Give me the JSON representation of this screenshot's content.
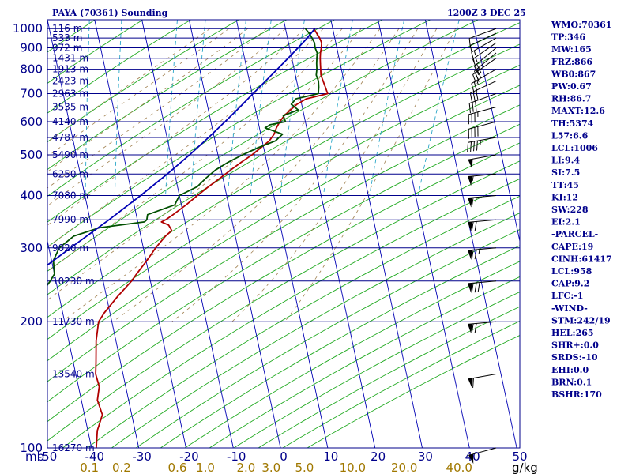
{
  "header": {
    "station_title": "PAYA (70361) Sounding",
    "valid_time": "1200Z  3 DEC 25"
  },
  "units": {
    "pressure": "mb",
    "mixing_ratio": "g/kg"
  },
  "indices": [
    "WMO:70361",
    "TP:346",
    "MW:165",
    "FRZ:866",
    "WB0:867",
    "PW:0.67",
    "RH:86.7",
    "MAXT:12.6",
    "TH:5374",
    "L57:6.6",
    "LCL:1006",
    "LI:9.4",
    "SI:7.5",
    "TT:45",
    "KI:12",
    "SW:228",
    "EI:2.1",
    "-PARCEL-",
    "CAPE:19",
    "CINH:61417",
    "LCL:958",
    "CAP:9.2",
    "LFC:-1",
    "-WIND-",
    "STM:242/19",
    "HEL:265",
    "SHR+:0.0",
    "SRDS:-10",
    "EHI:0.0",
    "BRN:0.1",
    "BSHR:170"
  ],
  "chart_data": {
    "type": "line",
    "title": "PAYA (70361) Sounding",
    "subtitle": "1200Z  3 DEC 25",
    "xlabel": "",
    "ylabel": "",
    "ylog": true,
    "ylim": [
      1050,
      100
    ],
    "xlim": [
      -50,
      50
    ],
    "skew": true,
    "pressure_levels": [
      100,
      200,
      300,
      400,
      500,
      600,
      700,
      800,
      900,
      1000
    ],
    "pressure_tick_labels": [
      "100",
      "200",
      "300",
      "400",
      "500",
      "600",
      "700",
      "800",
      "900",
      "1000"
    ],
    "temperature_ticks": [
      -50,
      -40,
      -30,
      -20,
      -10,
      0,
      10,
      20,
      30,
      40,
      50
    ],
    "temperature_tick_labels": [
      "-50",
      "-40",
      "-30",
      "-20",
      "-10",
      "0",
      "10",
      "20",
      "30",
      "40",
      "50"
    ],
    "mixing_ratio_labels": [
      "0.1",
      "0.2",
      "0.6",
      "1.0",
      "2.0",
      "3.0",
      "5.0",
      "10.0",
      "20.0",
      "40.0"
    ],
    "height_labels": [
      {
        "p": 100,
        "label": "16270 m"
      },
      {
        "p": 150,
        "label": "13540 m"
      },
      {
        "p": 200,
        "label": "11730 m"
      },
      {
        "p": 250,
        "label": "10230 m"
      },
      {
        "p": 300,
        "label": "9020 m"
      },
      {
        "p": 350,
        "label": "7990 m"
      },
      {
        "p": 400,
        "label": "7080 m"
      },
      {
        "p": 450,
        "label": "6250 m"
      },
      {
        "p": 500,
        "label": "5490 m"
      },
      {
        "p": 550,
        "label": "4787 m"
      },
      {
        "p": 600,
        "label": "4140 m"
      },
      {
        "p": 650,
        "label": "3535 m"
      },
      {
        "p": 700,
        "label": "2963 m"
      },
      {
        "p": 750,
        "label": "2423 m"
      },
      {
        "p": 800,
        "label": "1913 m"
      },
      {
        "p": 850,
        "label": "1431 m"
      },
      {
        "p": 900,
        "label": "972 m"
      },
      {
        "p": 950,
        "label": "533 m"
      },
      {
        "p": 1000,
        "label": "116 m"
      }
    ],
    "series": [
      {
        "role": "temperature",
        "color": "#b00000",
        "points": [
          [
            1000,
            6.0
          ],
          [
            975,
            6.4
          ],
          [
            950,
            6.8
          ],
          [
            925,
            7.0
          ],
          [
            900,
            6.7
          ],
          [
            875,
            6.3
          ],
          [
            850,
            6.0
          ],
          [
            825,
            5.8
          ],
          [
            800,
            5.6
          ],
          [
            775,
            5.4
          ],
          [
            750,
            5.6
          ],
          [
            725,
            5.8
          ],
          [
            700,
            6.0
          ],
          [
            680,
            1.2
          ],
          [
            660,
            -1.0
          ],
          [
            640,
            -2.6
          ],
          [
            620,
            -4.2
          ],
          [
            600,
            -5.4
          ],
          [
            580,
            -6.4
          ],
          [
            560,
            -7.2
          ],
          [
            540,
            -8.5
          ],
          [
            520,
            -10.6
          ],
          [
            500,
            -12.8
          ],
          [
            480,
            -15.4
          ],
          [
            460,
            -18.0
          ],
          [
            440,
            -20.6
          ],
          [
            420,
            -23.4
          ],
          [
            400,
            -26.2
          ],
          [
            380,
            -29.0
          ],
          [
            360,
            -32.2
          ],
          [
            350,
            -34.0
          ],
          [
            346,
            -35.0
          ],
          [
            340,
            -33.6
          ],
          [
            330,
            -33.2
          ],
          [
            320,
            -34.8
          ],
          [
            300,
            -37.4
          ],
          [
            280,
            -39.8
          ],
          [
            260,
            -42.6
          ],
          [
            250,
            -44.0
          ],
          [
            230,
            -47.6
          ],
          [
            210,
            -51.2
          ],
          [
            200,
            -52.8
          ],
          [
            180,
            -54.2
          ],
          [
            160,
            -55.2
          ],
          [
            150,
            -55.8
          ],
          [
            140,
            -55.6
          ],
          [
            130,
            -56.6
          ],
          [
            120,
            -56.2
          ],
          [
            110,
            -58.0
          ],
          [
            100,
            -59.0
          ],
          [
            94,
            -59.0
          ]
        ]
      },
      {
        "role": "dewpoint",
        "color": "#005000",
        "points": [
          [
            1000,
            4.2
          ],
          [
            975,
            4.8
          ],
          [
            950,
            5.2
          ],
          [
            925,
            5.5
          ],
          [
            900,
            5.4
          ],
          [
            875,
            5.6
          ],
          [
            850,
            5.3
          ],
          [
            825,
            5.0
          ],
          [
            800,
            4.8
          ],
          [
            775,
            4.4
          ],
          [
            750,
            4.6
          ],
          [
            725,
            4.4
          ],
          [
            700,
            4.0
          ],
          [
            680,
            -1.0
          ],
          [
            660,
            -2.2
          ],
          [
            640,
            -1.0
          ],
          [
            620,
            -4.4
          ],
          [
            600,
            -4.2
          ],
          [
            590,
            -7.6
          ],
          [
            580,
            -8.8
          ],
          [
            560,
            -5.4
          ],
          [
            540,
            -7.2
          ],
          [
            520,
            -11.2
          ],
          [
            500,
            -14.8
          ],
          [
            480,
            -18.2
          ],
          [
            460,
            -21.2
          ],
          [
            440,
            -23.6
          ],
          [
            420,
            -25.8
          ],
          [
            400,
            -30.0
          ],
          [
            380,
            -31.4
          ],
          [
            360,
            -37.6
          ],
          [
            350,
            -38.0
          ],
          [
            346,
            -38.6
          ],
          [
            335,
            -48.4
          ],
          [
            320,
            -54.2
          ],
          [
            300,
            -57.8
          ],
          [
            280,
            -59.6
          ],
          [
            260,
            -60.0
          ],
          [
            250,
            -61.2
          ],
          [
            230,
            -64.2
          ],
          [
            210,
            -67.2
          ],
          [
            200,
            -69.0
          ],
          [
            180,
            -72.2
          ],
          [
            160,
            -75.4
          ],
          [
            150,
            -78.4
          ],
          [
            140,
            -79.2
          ],
          [
            130,
            -81.0
          ],
          [
            120,
            -84.2
          ],
          [
            110,
            -87.0
          ],
          [
            100,
            -88.8
          ],
          [
            94,
            -90.0
          ]
        ]
      },
      {
        "role": "parcel",
        "color": "#0000b4",
        "points": [
          [
            1000,
            6.2
          ],
          [
            950,
            4.2
          ],
          [
            900,
            1.8
          ],
          [
            850,
            -0.8
          ],
          [
            800,
            -3.6
          ],
          [
            750,
            -6.6
          ],
          [
            700,
            -9.8
          ],
          [
            650,
            -13.2
          ],
          [
            600,
            -17.0
          ],
          [
            550,
            -21.2
          ],
          [
            500,
            -26.0
          ],
          [
            450,
            -31.6
          ],
          [
            400,
            -38.2
          ],
          [
            350,
            -46.0
          ],
          [
            300,
            -55.4
          ],
          [
            250,
            -66.4
          ],
          [
            200,
            -80.4
          ],
          [
            150,
            -98.6
          ],
          [
            120,
            -112.0
          ]
        ]
      }
    ],
    "wind_barbs": [
      {
        "p": 1000,
        "dir": 250,
        "kt": 10
      },
      {
        "p": 975,
        "dir": 245,
        "kt": 10
      },
      {
        "p": 950,
        "dir": 240,
        "kt": 15
      },
      {
        "p": 925,
        "dir": 235,
        "kt": 15
      },
      {
        "p": 900,
        "dir": 230,
        "kt": 20
      },
      {
        "p": 875,
        "dir": 230,
        "kt": 20
      },
      {
        "p": 850,
        "dir": 235,
        "kt": 20
      },
      {
        "p": 800,
        "dir": 240,
        "kt": 25
      },
      {
        "p": 750,
        "dir": 245,
        "kt": 30
      },
      {
        "p": 700,
        "dir": 250,
        "kt": 30
      },
      {
        "p": 650,
        "dir": 255,
        "kt": 35
      },
      {
        "p": 600,
        "dir": 255,
        "kt": 40
      },
      {
        "p": 550,
        "dir": 260,
        "kt": 45
      },
      {
        "p": 500,
        "dir": 260,
        "kt": 50
      },
      {
        "p": 450,
        "dir": 265,
        "kt": 55
      },
      {
        "p": 400,
        "dir": 265,
        "kt": 65
      },
      {
        "p": 350,
        "dir": 265,
        "kt": 70
      },
      {
        "p": 300,
        "dir": 265,
        "kt": 75
      },
      {
        "p": 250,
        "dir": 265,
        "kt": 80
      },
      {
        "p": 200,
        "dir": 265,
        "kt": 70
      },
      {
        "p": 150,
        "dir": 260,
        "kt": 60
      },
      {
        "p": 100,
        "dir": 255,
        "kt": 50
      }
    ]
  }
}
